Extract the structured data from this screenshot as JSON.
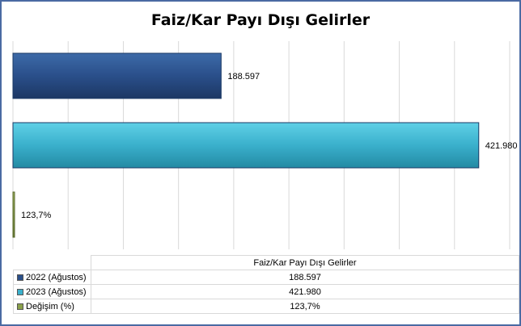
{
  "chart_data": {
    "type": "bar",
    "orientation": "horizontal",
    "title": "Faiz/Kar Payı Dışı Gelirler",
    "series": [
      {
        "name": "2022 (Ağustos)",
        "value": 188597,
        "label": "188.597",
        "color": "#2a4f8a"
      },
      {
        "name": "2023 (Ağustos)",
        "value": 421980,
        "label": "421.980",
        "color": "#3ab0cc"
      },
      {
        "name": "Değişim (%)",
        "value": 123.7,
        "label": "123,7%",
        "color": "#8aa04a"
      }
    ],
    "xlim": [
      0,
      450000
    ],
    "grid": true,
    "data_table": {
      "column_header": "Faiz/Kar Payı Dışı Gelirler",
      "rows": [
        {
          "label": "2022 (Ağustos)",
          "value": "188.597"
        },
        {
          "label": "2023 (Ağustos)",
          "value": "421.980"
        },
        {
          "label": "Değişim (%)",
          "value": "123,7%"
        }
      ]
    }
  }
}
